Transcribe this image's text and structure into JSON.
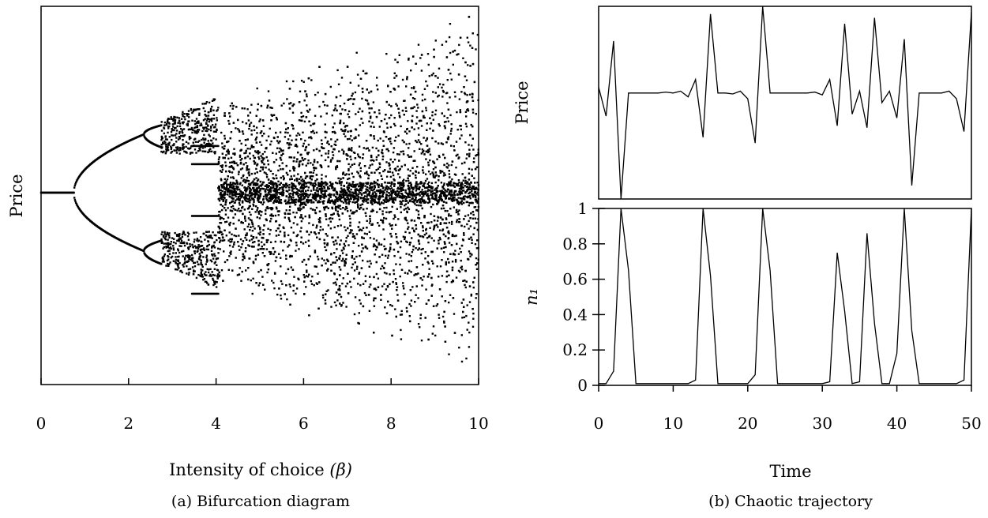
{
  "chart_data": [
    {
      "type": "scatter",
      "caption": "(a) Bifurcation diagram",
      "xlabel": "Intensity of choice",
      "xlabel_symbol": "(β)",
      "ylabel": "Price",
      "xlim": [
        0,
        10
      ],
      "ylim": [
        -1.45,
        1.45
      ],
      "xticks": [
        0,
        2,
        4,
        6,
        8,
        10
      ],
      "xtick_labels": [
        "0",
        "2",
        "4",
        "6",
        "8",
        "10"
      ],
      "yticks": [],
      "grid": false,
      "note_branches": [
        {
          "beta_range": [
            0,
            0.75
          ],
          "price": [
            0.0
          ]
        },
        {
          "beta_range": [
            0.75,
            2.35
          ],
          "price": [
            0.0,
            0.0
          ]
        },
        {
          "beta_range": [
            2.35,
            4.05
          ],
          "price": [
            0.0,
            0.0,
            0.0,
            0.0
          ]
        },
        {
          "beta_range": [
            4.05,
            10
          ],
          "price_spread_envelope": [
            1.45,
            1.45
          ]
        }
      ]
    },
    {
      "type": "line",
      "caption": "(b) Chaotic trajectory",
      "panels": [
        {
          "ylabel": "Price",
          "yticks": [],
          "x": [
            0,
            1,
            2,
            3,
            4,
            5,
            6,
            7,
            8,
            9,
            10,
            11,
            12,
            13,
            14,
            15,
            16,
            17,
            18,
            19,
            20,
            21,
            22,
            23,
            24,
            25,
            26,
            27,
            28,
            29,
            30,
            31,
            32,
            33,
            34,
            35,
            36,
            37,
            38,
            39,
            40,
            41,
            42,
            43,
            44,
            45,
            46,
            47,
            48,
            49,
            50
          ],
          "values": [
            0.58,
            0.43,
            0.82,
            0.0,
            0.55,
            0.55,
            0.55,
            0.55,
            0.55,
            0.555,
            0.55,
            0.56,
            0.53,
            0.62,
            0.32,
            0.96,
            0.55,
            0.55,
            0.545,
            0.56,
            0.52,
            0.29,
            1.0,
            0.55,
            0.55,
            0.55,
            0.55,
            0.55,
            0.55,
            0.555,
            0.54,
            0.62,
            0.38,
            0.91,
            0.44,
            0.56,
            0.37,
            0.94,
            0.5,
            0.56,
            0.42,
            0.83,
            0.07,
            0.55,
            0.55,
            0.55,
            0.55,
            0.56,
            0.52,
            0.35,
            0.97
          ]
        },
        {
          "ylabel": "n₁",
          "ylim": [
            0,
            1
          ],
          "yticks": [
            0,
            0.2,
            0.4,
            0.6,
            0.8,
            1
          ],
          "ytick_labels": [
            "0",
            "0.2",
            "0.4",
            "0.6",
            "0.8",
            "1"
          ],
          "x": [
            0,
            1,
            2,
            3,
            4,
            5,
            6,
            7,
            8,
            9,
            10,
            11,
            12,
            13,
            14,
            15,
            16,
            17,
            18,
            19,
            20,
            21,
            22,
            23,
            24,
            25,
            26,
            27,
            28,
            29,
            30,
            31,
            32,
            33,
            34,
            35,
            36,
            37,
            38,
            39,
            40,
            41,
            42,
            43,
            44,
            45,
            46,
            47,
            48,
            49,
            50
          ],
          "values": [
            0.01,
            0.01,
            0.08,
            1.0,
            0.65,
            0.01,
            0.01,
            0.01,
            0.01,
            0.01,
            0.01,
            0.01,
            0.01,
            0.03,
            1.0,
            0.62,
            0.01,
            0.01,
            0.01,
            0.01,
            0.01,
            0.06,
            1.0,
            0.65,
            0.01,
            0.01,
            0.01,
            0.01,
            0.01,
            0.01,
            0.01,
            0.02,
            0.75,
            0.42,
            0.01,
            0.02,
            0.86,
            0.35,
            0.01,
            0.01,
            0.18,
            1.0,
            0.31,
            0.01,
            0.01,
            0.01,
            0.01,
            0.01,
            0.01,
            0.03,
            1.0
          ]
        }
      ],
      "xlabel": "Time",
      "xlim": [
        0,
        50
      ],
      "xticks": [
        0,
        10,
        20,
        30,
        40,
        50
      ],
      "xtick_labels": [
        "0",
        "10",
        "20",
        "30",
        "40",
        "50"
      ],
      "grid": false
    }
  ]
}
